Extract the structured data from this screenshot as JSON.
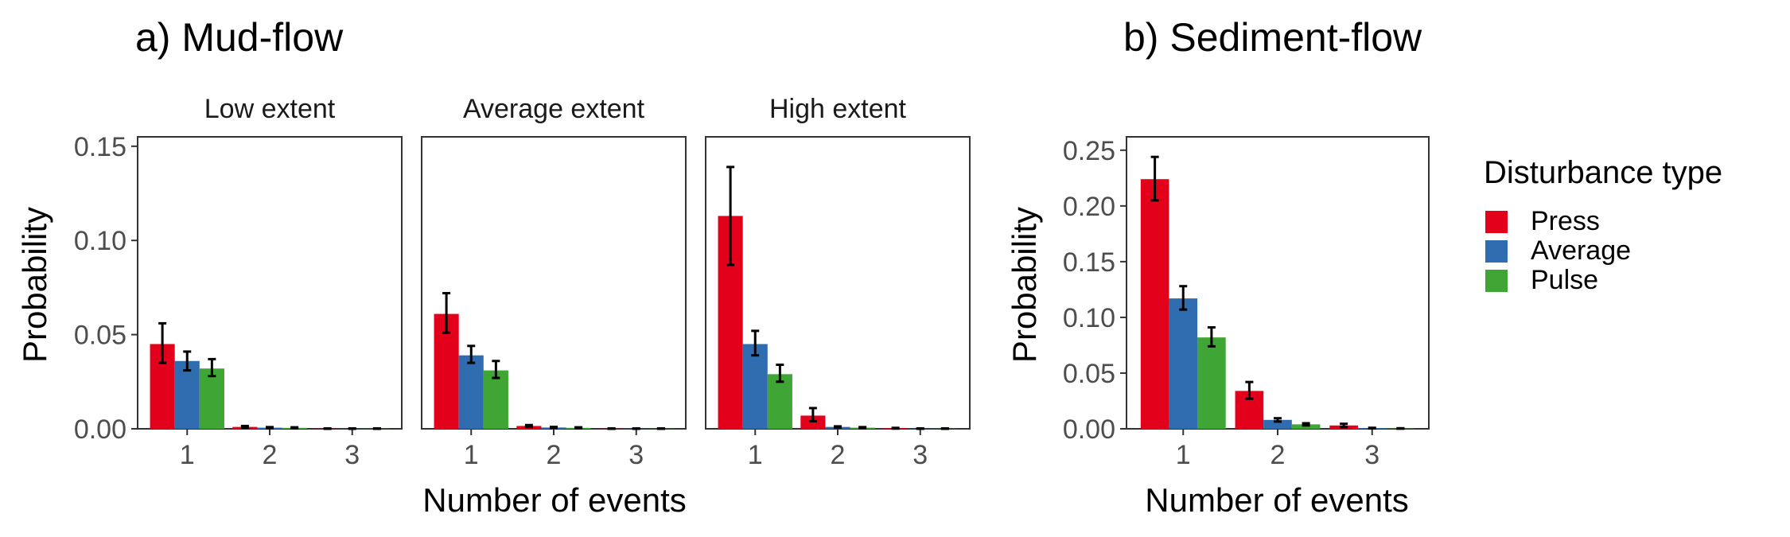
{
  "chart_data": [
    {
      "type": "bar",
      "title": "a) Mud-flow",
      "xlabel": "Number of events",
      "ylabel": "Probability",
      "ylim": [
        0,
        0.155
      ],
      "yticks": [
        "0.00",
        "0.05",
        "0.10",
        "0.15"
      ],
      "yticks_values": [
        0,
        0.05,
        0.1,
        0.15
      ],
      "grid": false,
      "panels": [
        {
          "label": "Low extent",
          "categories": [
            "1",
            "2",
            "3"
          ],
          "series": [
            {
              "name": "Press",
              "values": [
                0.045,
                0.001,
                0.0001
              ],
              "err_low": [
                0.035,
                0.0005,
                0
              ],
              "err_high": [
                0.056,
                0.0015,
                0.0002
              ]
            },
            {
              "name": "Average",
              "values": [
                0.036,
                0.0006,
                0.0001
              ],
              "err_low": [
                0.031,
                0.0003,
                0
              ],
              "err_high": [
                0.041,
                0.0009,
                0.0002
              ]
            },
            {
              "name": "Pulse",
              "values": [
                0.032,
                0.0005,
                0.0001
              ],
              "err_low": [
                0.028,
                0.0002,
                0
              ],
              "err_high": [
                0.037,
                0.0008,
                0.0002
              ]
            }
          ]
        },
        {
          "label": "Average extent",
          "categories": [
            "1",
            "2",
            "3"
          ],
          "series": [
            {
              "name": "Press",
              "values": [
                0.061,
                0.0015,
                0.0001
              ],
              "err_low": [
                0.051,
                0.001,
                0
              ],
              "err_high": [
                0.072,
                0.002,
                0.0002
              ]
            },
            {
              "name": "Average",
              "values": [
                0.039,
                0.0007,
                0.0001
              ],
              "err_low": [
                0.035,
                0.0004,
                0
              ],
              "err_high": [
                0.044,
                0.001,
                0.0002
              ]
            },
            {
              "name": "Pulse",
              "values": [
                0.031,
                0.0005,
                0.0001
              ],
              "err_low": [
                0.027,
                0.0002,
                0
              ],
              "err_high": [
                0.036,
                0.0008,
                0.0002
              ]
            }
          ]
        },
        {
          "label": "High extent",
          "categories": [
            "1",
            "2",
            "3"
          ],
          "series": [
            {
              "name": "Press",
              "values": [
                0.113,
                0.007,
                0.0003
              ],
              "err_low": [
                0.087,
                0.004,
                0.0001
              ],
              "err_high": [
                0.139,
                0.011,
                0.0005
              ]
            },
            {
              "name": "Average",
              "values": [
                0.045,
                0.001,
                0.0001
              ],
              "err_low": [
                0.039,
                0.0007,
                0
              ],
              "err_high": [
                0.052,
                0.0013,
                0.0002
              ]
            },
            {
              "name": "Pulse",
              "values": [
                0.029,
                0.0006,
                0.0001
              ],
              "err_low": [
                0.025,
                0.0003,
                0
              ],
              "err_high": [
                0.034,
                0.0009,
                0.0002
              ]
            }
          ]
        }
      ]
    },
    {
      "type": "bar",
      "title": "b) Sediment-flow",
      "xlabel": "Number of events",
      "ylabel": "Probability",
      "ylim": [
        0,
        0.262
      ],
      "yticks": [
        "0.00",
        "0.05",
        "0.10",
        "0.15",
        "0.20",
        "0.25"
      ],
      "yticks_values": [
        0,
        0.05,
        0.1,
        0.15,
        0.2,
        0.25
      ],
      "grid": false,
      "panels": [
        {
          "label": "",
          "categories": [
            "1",
            "2",
            "3"
          ],
          "series": [
            {
              "name": "Press",
              "values": [
                0.224,
                0.034,
                0.003
              ],
              "err_low": [
                0.205,
                0.027,
                0.0015
              ],
              "err_high": [
                0.244,
                0.042,
                0.0045
              ]
            },
            {
              "name": "Average",
              "values": [
                0.117,
                0.008,
                0.0006
              ],
              "err_low": [
                0.107,
                0.0065,
                0.0003
              ],
              "err_high": [
                0.128,
                0.0095,
                0.0009
              ]
            },
            {
              "name": "Pulse",
              "values": [
                0.082,
                0.004,
                0.0003
              ],
              "err_low": [
                0.074,
                0.003,
                0.0001
              ],
              "err_high": [
                0.091,
                0.005,
                0.0005
              ]
            }
          ]
        }
      ]
    }
  ],
  "legend": {
    "title": "Disturbance type",
    "placement": "right",
    "items": [
      {
        "name": "Press",
        "color": "#E2001A"
      },
      {
        "name": "Average",
        "color": "#2F6DB0"
      },
      {
        "name": "Pulse",
        "color": "#3FA535"
      }
    ]
  }
}
